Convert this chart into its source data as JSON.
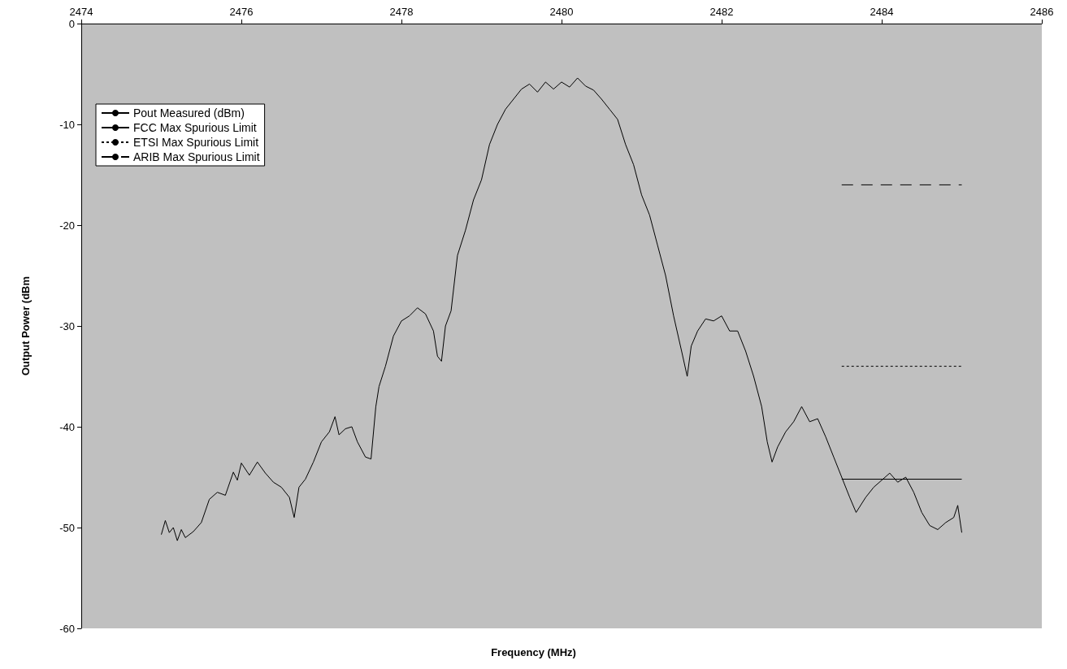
{
  "chart_data": {
    "type": "line",
    "xlabel": "Frequency (MHz)",
    "ylabel": "Output Power (dBm",
    "xlim": [
      2474,
      2486
    ],
    "xticks": [
      2474,
      2476,
      2478,
      2480,
      2482,
      2484,
      2486
    ],
    "ylim": [
      -60,
      0
    ],
    "yticks": [
      -60,
      -50,
      -40,
      -30,
      -20,
      -10,
      0
    ],
    "grid": false,
    "legend": "top left",
    "marker": "none",
    "series": [
      {
        "name": "Pout Measured (dBm)",
        "color": "#000000",
        "line_style": "solid",
        "x": [
          2475.0,
          2475.05,
          2475.1,
          2475.15,
          2475.2,
          2475.25,
          2475.3,
          2475.4,
          2475.5,
          2475.6,
          2475.7,
          2475.8,
          2475.9,
          2475.95,
          2476.0,
          2476.1,
          2476.2,
          2476.3,
          2476.4,
          2476.5,
          2476.6,
          2476.66,
          2476.72,
          2476.8,
          2476.9,
          2477.0,
          2477.1,
          2477.17,
          2477.22,
          2477.3,
          2477.38,
          2477.45,
          2477.55,
          2477.62,
          2477.68,
          2477.72,
          2477.8,
          2477.9,
          2478.0,
          2478.1,
          2478.2,
          2478.3,
          2478.4,
          2478.45,
          2478.5,
          2478.55,
          2478.62,
          2478.7,
          2478.8,
          2478.9,
          2479.0,
          2479.1,
          2479.2,
          2479.3,
          2479.4,
          2479.5,
          2479.6,
          2479.7,
          2479.8,
          2479.9,
          2480.0,
          2480.1,
          2480.2,
          2480.3,
          2480.4,
          2480.5,
          2480.6,
          2480.7,
          2480.8,
          2480.9,
          2481.0,
          2481.1,
          2481.2,
          2481.3,
          2481.4,
          2481.5,
          2481.57,
          2481.62,
          2481.7,
          2481.8,
          2481.9,
          2482.0,
          2482.1,
          2482.2,
          2482.3,
          2482.4,
          2482.5,
          2482.57,
          2482.63,
          2482.7,
          2482.8,
          2482.9,
          2483.0,
          2483.1,
          2483.2,
          2483.3,
          2483.4,
          2483.5,
          2483.6,
          2483.68,
          2483.8,
          2483.9,
          2484.0,
          2484.1,
          2484.2,
          2484.3,
          2484.4,
          2484.5,
          2484.6,
          2484.7,
          2484.8,
          2484.9,
          2484.95,
          2485.0
        ],
        "values": [
          -50.7,
          -49.3,
          -50.5,
          -50.0,
          -51.3,
          -50.2,
          -51.0,
          -50.4,
          -49.5,
          -47.2,
          -46.5,
          -46.8,
          -44.5,
          -45.3,
          -43.6,
          -44.8,
          -43.5,
          -44.6,
          -45.5,
          -46.0,
          -47.0,
          -49.0,
          -46.0,
          -45.2,
          -43.5,
          -41.5,
          -40.5,
          -39.0,
          -40.8,
          -40.2,
          -40.0,
          -41.5,
          -43.0,
          -43.2,
          -38.0,
          -36.0,
          -34.0,
          -31.0,
          -29.5,
          -29.0,
          -28.2,
          -28.8,
          -30.5,
          -33.0,
          -33.5,
          -30.0,
          -28.5,
          -23.0,
          -20.5,
          -17.5,
          -15.5,
          -12.0,
          -10.0,
          -8.5,
          -7.5,
          -6.5,
          -6.0,
          -6.8,
          -5.8,
          -6.5,
          -5.8,
          -6.3,
          -5.4,
          -6.2,
          -6.6,
          -7.5,
          -8.5,
          -9.5,
          -12.0,
          -14.0,
          -17.0,
          -19.0,
          -22.0,
          -25.0,
          -29.0,
          -32.5,
          -35.0,
          -32.0,
          -30.5,
          -29.3,
          -29.5,
          -29.0,
          -30.5,
          -30.5,
          -32.5,
          -35.0,
          -38.0,
          -41.5,
          -43.5,
          -42.0,
          -40.5,
          -39.5,
          -38.0,
          -39.5,
          -39.2,
          -41.0,
          -43.0,
          -45.0,
          -47.0,
          -48.5,
          -47.0,
          -46.0,
          -45.3,
          -44.6,
          -45.5,
          -45.0,
          -46.5,
          -48.5,
          -49.8,
          -50.2,
          -49.5,
          -49.0,
          -47.8,
          -50.5
        ]
      },
      {
        "name": "FCC Max Spurious Limit",
        "color": "#000000",
        "line_style": "solid",
        "x": [
          2483.5,
          2485.0
        ],
        "values": [
          -45.2,
          -45.2
        ]
      },
      {
        "name": "ETSI Max Spurious Limit",
        "color": "#000000",
        "line_style": "dotted",
        "x": [
          2483.5,
          2485.0
        ],
        "values": [
          -34,
          -34
        ]
      },
      {
        "name": "ARIB Max Spurious Limit",
        "color": "#000000",
        "line_style": "dashed",
        "x": [
          2483.5,
          2485.0
        ],
        "values": [
          -16,
          -16
        ]
      }
    ]
  }
}
